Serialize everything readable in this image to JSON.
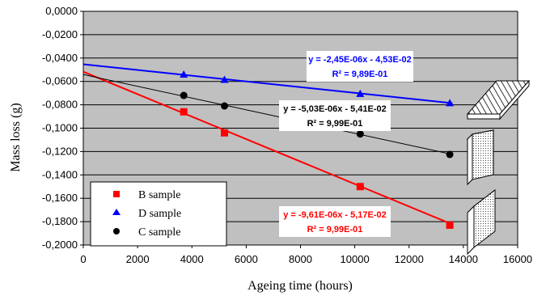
{
  "chart_data": {
    "type": "scatter",
    "xlabel": "Ageing time (hours)",
    "ylabel": "Mass loss (g)",
    "xlim": [
      0,
      16000
    ],
    "ylim": [
      -0.2,
      0
    ],
    "xticks": [
      0,
      2000,
      4000,
      6000,
      8000,
      10000,
      12000,
      14000,
      16000
    ],
    "xtick_labels": [
      "0",
      "2000",
      "4000",
      "6000",
      "8000",
      "10000",
      "12000",
      "14000",
      "16000"
    ],
    "yticks": [
      0,
      -0.02,
      -0.04,
      -0.06,
      -0.08,
      -0.1,
      -0.12,
      -0.14,
      -0.16,
      -0.18,
      -0.2
    ],
    "ytick_labels": [
      "0,0000",
      "-0,0200",
      "-0,0400",
      "-0,0600",
      "-0,0800",
      "-0,1000",
      "-0,1200",
      "-0,1400",
      "-0,1600",
      "-0,1800",
      "-0,2000"
    ],
    "grid": "horizontal",
    "plot_background": "#c0c0c0",
    "legend_position": "bottom-left",
    "series": [
      {
        "name": "B sample",
        "color": "#ff0000",
        "marker": "square",
        "points": [
          [
            3700,
            -0.086
          ],
          [
            5200,
            -0.104
          ],
          [
            10200,
            -0.15
          ],
          [
            13500,
            -0.183
          ]
        ],
        "trendline": {
          "slope": -9.61e-06,
          "intercept": -0.0517,
          "x_range": [
            0,
            13600
          ]
        },
        "equation": "y = -9,61E-06x - 5,17E-02",
        "r2": "R² = 9,99E-01"
      },
      {
        "name": "D sample",
        "color": "#0000ff",
        "marker": "triangle",
        "points": [
          [
            3700,
            -0.054
          ],
          [
            5200,
            -0.0585
          ],
          [
            10200,
            -0.0705
          ],
          [
            13500,
            -0.0785
          ]
        ],
        "trendline": {
          "slope": -2.45e-06,
          "intercept": -0.0453,
          "x_range": [
            0,
            13600
          ]
        },
        "equation": "y = -2,45E-06x - 4,53E-02",
        "r2": "R² = 9,89E-01"
      },
      {
        "name": "C sample",
        "color": "#000000",
        "marker": "circle",
        "points": [
          [
            3700,
            -0.072
          ],
          [
            5200,
            -0.081
          ],
          [
            10200,
            -0.105
          ],
          [
            13500,
            -0.1225
          ]
        ],
        "trendline": {
          "slope": -5.03e-06,
          "intercept": -0.0541,
          "x_range": [
            0,
            13600
          ]
        },
        "equation": "y = -5,03E-06x - 5,41E-02",
        "r2": "R² = 9,99E-01"
      }
    ]
  }
}
